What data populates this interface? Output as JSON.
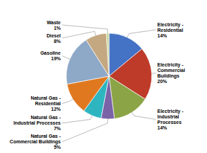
{
  "chart_data": {
    "type": "pie",
    "categories": [
      "Electricity -\nResidential\n14%",
      "Electricity -\nCommercial\nBuildings\n20%",
      "Electricity -\nIndustrial\nProcesses\n14%",
      "Natural Gas -\nCommercial Buildings\n5%",
      "Natural Gas -\nIndustrial Processes\n7%",
      "Natural Gas -\nResidential\n12%",
      "Gasoline\n19%",
      "Diesel\n8%",
      "Waste\n1%"
    ],
    "values": [
      14,
      20,
      14,
      5,
      7,
      12,
      19,
      8,
      1
    ],
    "colors": [
      "#4472C4",
      "#BE3B2A",
      "#8BA446",
      "#7B63A8",
      "#2EB5C0",
      "#E07820",
      "#8EA8C8",
      "#C4A882",
      "#C8D89A"
    ]
  }
}
